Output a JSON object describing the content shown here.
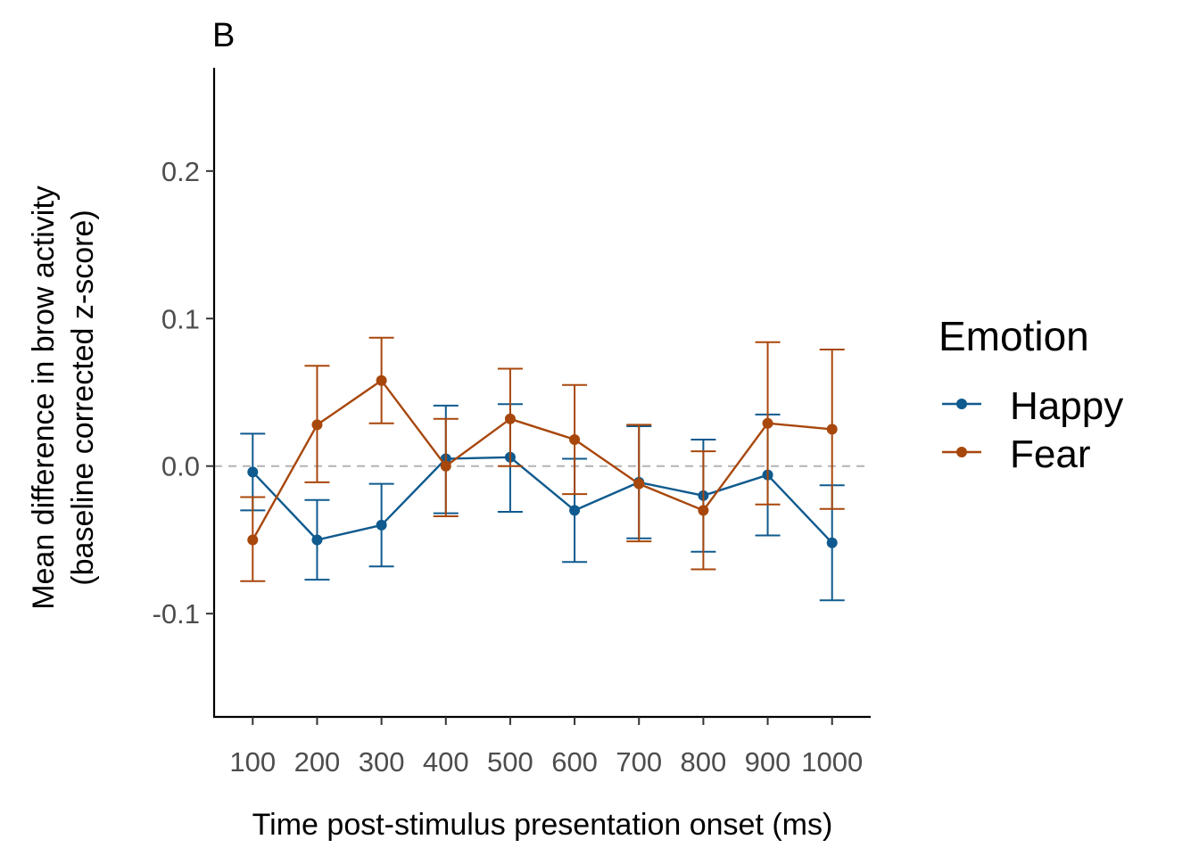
{
  "chart_data": {
    "type": "line",
    "panel_label": "B",
    "title": "",
    "xlabel": "Time post-stimulus presentation onset (ms)",
    "ylabel": [
      "Mean difference in brow activity",
      "(baseline corrected z-score)"
    ],
    "x": [
      100,
      200,
      300,
      400,
      500,
      600,
      700,
      800,
      900,
      1000
    ],
    "x_tick_labels": [
      "100",
      "200",
      "300",
      "400",
      "500",
      "600",
      "700",
      "800",
      "900",
      "1000"
    ],
    "xlim": [
      40,
      1060
    ],
    "ylim": [
      -0.17,
      0.27
    ],
    "y_ticks": [
      -0.1,
      0.0,
      0.1,
      0.2
    ],
    "y_tick_labels": [
      "-0.1",
      "0.0",
      "0.1",
      "0.2"
    ],
    "reference_line": {
      "y": 0,
      "style": "dashed",
      "color": "#b3b3b3"
    },
    "grid": false,
    "legend": {
      "title": "Emotion",
      "position": "right"
    },
    "series": [
      {
        "name": "Happy",
        "color": "#0f5a8e",
        "values": [
          -0.004,
          -0.05,
          -0.04,
          0.005,
          0.006,
          -0.03,
          -0.011,
          -0.02,
          -0.006,
          -0.052
        ],
        "ci_lower": [
          -0.03,
          -0.077,
          -0.068,
          -0.032,
          -0.031,
          -0.065,
          -0.049,
          -0.058,
          -0.047,
          -0.091
        ],
        "ci_upper": [
          0.022,
          -0.023,
          -0.012,
          0.041,
          0.042,
          0.005,
          0.027,
          0.018,
          0.035,
          -0.013
        ]
      },
      {
        "name": "Fear",
        "color": "#a8470c",
        "values": [
          -0.05,
          0.028,
          0.058,
          0.0,
          0.032,
          0.018,
          -0.012,
          -0.03,
          0.029,
          0.025
        ],
        "ci_lower": [
          -0.078,
          -0.011,
          0.029,
          -0.034,
          0.0,
          -0.019,
          -0.051,
          -0.07,
          -0.026,
          -0.029
        ],
        "ci_upper": [
          -0.021,
          0.068,
          0.087,
          0.032,
          0.066,
          0.055,
          0.028,
          0.01,
          0.084,
          0.079
        ]
      }
    ]
  }
}
